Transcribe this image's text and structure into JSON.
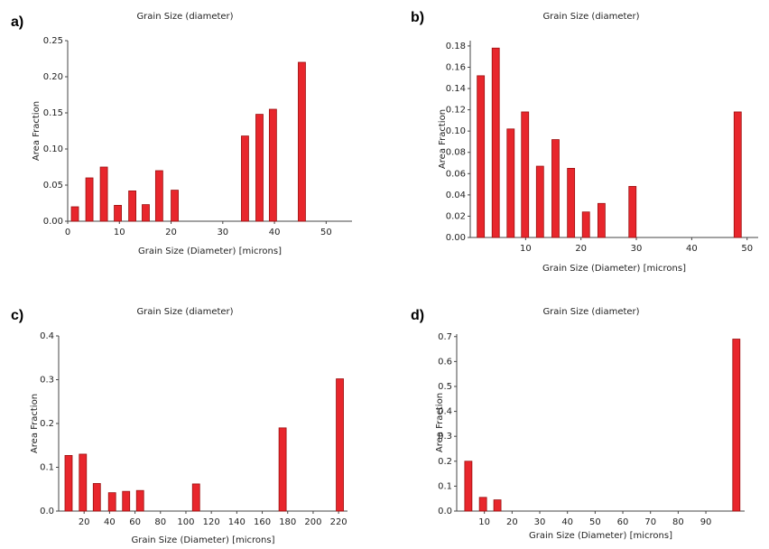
{
  "chart_data": [
    {
      "type": "bar",
      "panel_label": "a)",
      "title": "Grain Size (diameter)",
      "x_label": "Grain Size (Diameter) [microns]",
      "y_label": "Area Fraction",
      "color": "#e8262c",
      "x": [
        1.4,
        4.2,
        7,
        9.7,
        12.5,
        15.1,
        17.7,
        20.7,
        34.3,
        37.1,
        39.7,
        45.3
      ],
      "values": [
        0.02,
        0.06,
        0.075,
        0.022,
        0.042,
        0.023,
        0.07,
        0.043,
        0.118,
        0.148,
        0.155,
        0.22
      ],
      "xlim": [
        0,
        55
      ],
      "xticks": [
        0,
        10,
        20,
        30,
        40,
        50
      ],
      "ylim": [
        0,
        0.25
      ],
      "yticks": [
        {
          "value": 0,
          "label": "0.00"
        },
        0.05,
        {
          "value": 0.1,
          "label": "0.10"
        },
        0.15,
        {
          "value": 0.2,
          "label": "0.20"
        },
        0.25
      ]
    },
    {
      "type": "bar",
      "panel_label": "b)",
      "title": "Grain Size (diameter)",
      "x_label": "Grain Size (Diameter) [microns]",
      "y_label": "Area Fraction",
      "color": "#e8262c",
      "x": [
        1.9,
        4.6,
        7.3,
        9.9,
        12.6,
        15.4,
        18.2,
        20.9,
        23.7,
        29.3,
        48.3
      ],
      "values": [
        0.152,
        0.178,
        0.102,
        0.118,
        0.067,
        0.092,
        0.065,
        0.024,
        0.032,
        0.048,
        0.118
      ],
      "xlim": [
        0,
        52
      ],
      "xticks": [
        10,
        20,
        30,
        40,
        50
      ],
      "ylim": [
        0,
        0.185
      ],
      "yticks": [
        {
          "value": 0,
          "label": "0.00"
        },
        0.02,
        0.04,
        0.06,
        0.08,
        {
          "value": 0.1,
          "label": "0.10"
        },
        0.12,
        0.14,
        0.16,
        0.18
      ]
    },
    {
      "type": "bar",
      "panel_label": "c)",
      "title": "Grain Size (diameter)",
      "x_label": "Grain Size (Diameter) [microns]",
      "y_label": "Area Fraction",
      "color": "#e8262c",
      "x": [
        7.8,
        19,
        30,
        42,
        53,
        64,
        108,
        176,
        221
      ],
      "values": [
        0.127,
        0.13,
        0.063,
        0.042,
        0.045,
        0.047,
        0.062,
        0.19,
        0.302
      ],
      "xlim": [
        0,
        227
      ],
      "xticks": [
        20,
        40,
        60,
        80,
        100,
        120,
        140,
        160,
        180,
        200,
        220
      ],
      "ylim": [
        0,
        0.4
      ],
      "yticks": [
        {
          "value": 0,
          "label": "0.0"
        },
        0.1,
        0.2,
        0.3,
        0.4
      ]
    },
    {
      "type": "bar",
      "panel_label": "d)",
      "title": "Grain Size (diameter)",
      "x_label": "Grain Size (Diameter) [microns]",
      "y_label": "Area Fraction",
      "color": "#e8262c",
      "x": [
        4.2,
        9.5,
        14.7,
        101
      ],
      "values": [
        0.2,
        0.055,
        0.045,
        0.69
      ],
      "xlim": [
        0,
        104
      ],
      "xticks": [
        10,
        20,
        30,
        40,
        50,
        60,
        70,
        80,
        90
      ],
      "ylim": [
        0,
        0.71
      ],
      "yticks": [
        {
          "value": 0,
          "label": "0.0"
        },
        0.1,
        0.2,
        0.3,
        0.4,
        0.5,
        0.6,
        0.7
      ]
    }
  ]
}
